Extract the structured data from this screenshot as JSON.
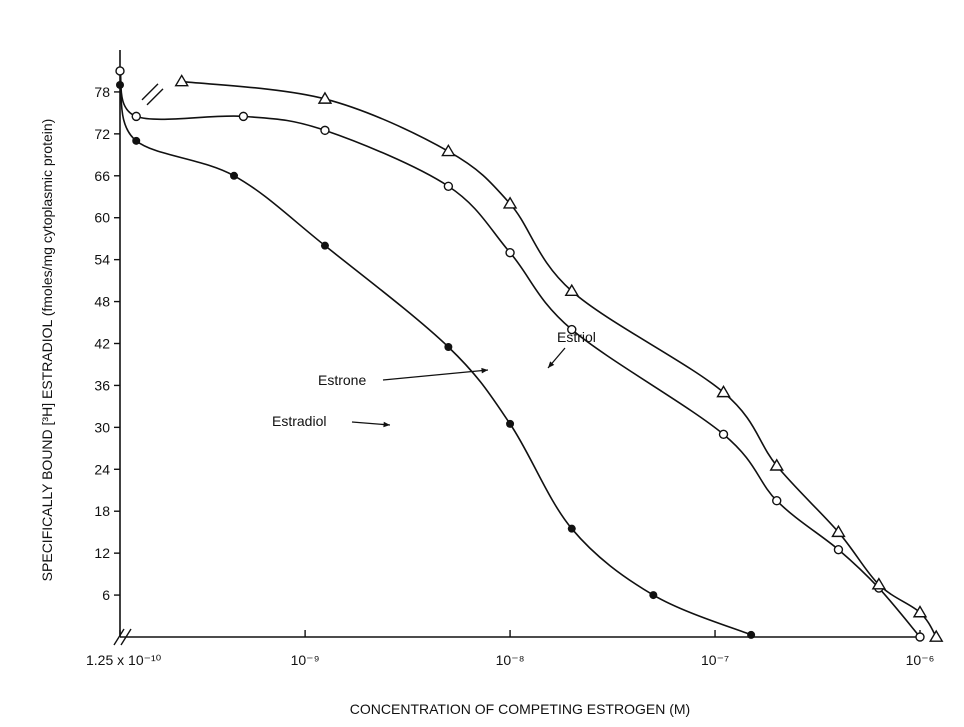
{
  "chart_data": {
    "type": "line",
    "title": "",
    "xlabel": "CONCENTRATION OF COMPETING ESTROGEN (M)",
    "ylabel": "SPECIFICALLY BOUND [³H] ESTRADIOL (fmoles/mg cytoplasmic protein)",
    "x_scale": "log",
    "xlim": [
      1.25e-10,
      1e-06
    ],
    "ylim": [
      0,
      84
    ],
    "x_tick_labels": [
      "1.25 x 10⁻¹⁰",
      "10⁻⁹",
      "10⁻⁸",
      "10⁻⁷",
      "10⁻⁶"
    ],
    "x_tick_values": [
      1.25e-10,
      1e-09,
      1e-08,
      1e-07,
      1e-06
    ],
    "y_ticks": [
      6,
      12,
      18,
      24,
      30,
      36,
      42,
      48,
      54,
      60,
      66,
      72,
      78
    ],
    "series": [
      {
        "name": "Estradiol",
        "marker": "filled-circle",
        "x": [
          1.25e-10,
          1.5e-10,
          4.5e-10,
          1.25e-09,
          5e-09,
          1e-08,
          2e-08,
          5e-08,
          1.5e-07
        ],
        "y": [
          79,
          71,
          66,
          56,
          41.5,
          30.5,
          15.5,
          6,
          0.3
        ]
      },
      {
        "name": "Estrone",
        "marker": "open-circle",
        "x": [
          1.25e-10,
          1.5e-10,
          5e-10,
          1.25e-09,
          5e-09,
          1e-08,
          2e-08,
          1.1e-07,
          2e-07,
          4e-07,
          6.3e-07,
          1e-06
        ],
        "y": [
          81,
          74.5,
          74.5,
          72.5,
          64.5,
          55,
          44,
          29,
          19.5,
          12.5,
          7,
          0
        ]
      },
      {
        "name": "Estriol",
        "marker": "open-triangle",
        "x": [
          2.5e-10,
          1.25e-09,
          5e-09,
          1e-08,
          2e-08,
          1.1e-07,
          2e-07,
          4e-07,
          6.3e-07,
          1e-06,
          1.2e-06
        ],
        "y": [
          79.5,
          77,
          69.5,
          62,
          49.5,
          35,
          24.5,
          15,
          7.5,
          3.5,
          0
        ]
      }
    ],
    "annotations": [
      {
        "text": "Estriol",
        "points_to": "Estriol"
      },
      {
        "text": "Estrone",
        "points_to": "Estrone"
      },
      {
        "text": "Estradiol",
        "points_to": "Estradiol"
      }
    ]
  }
}
